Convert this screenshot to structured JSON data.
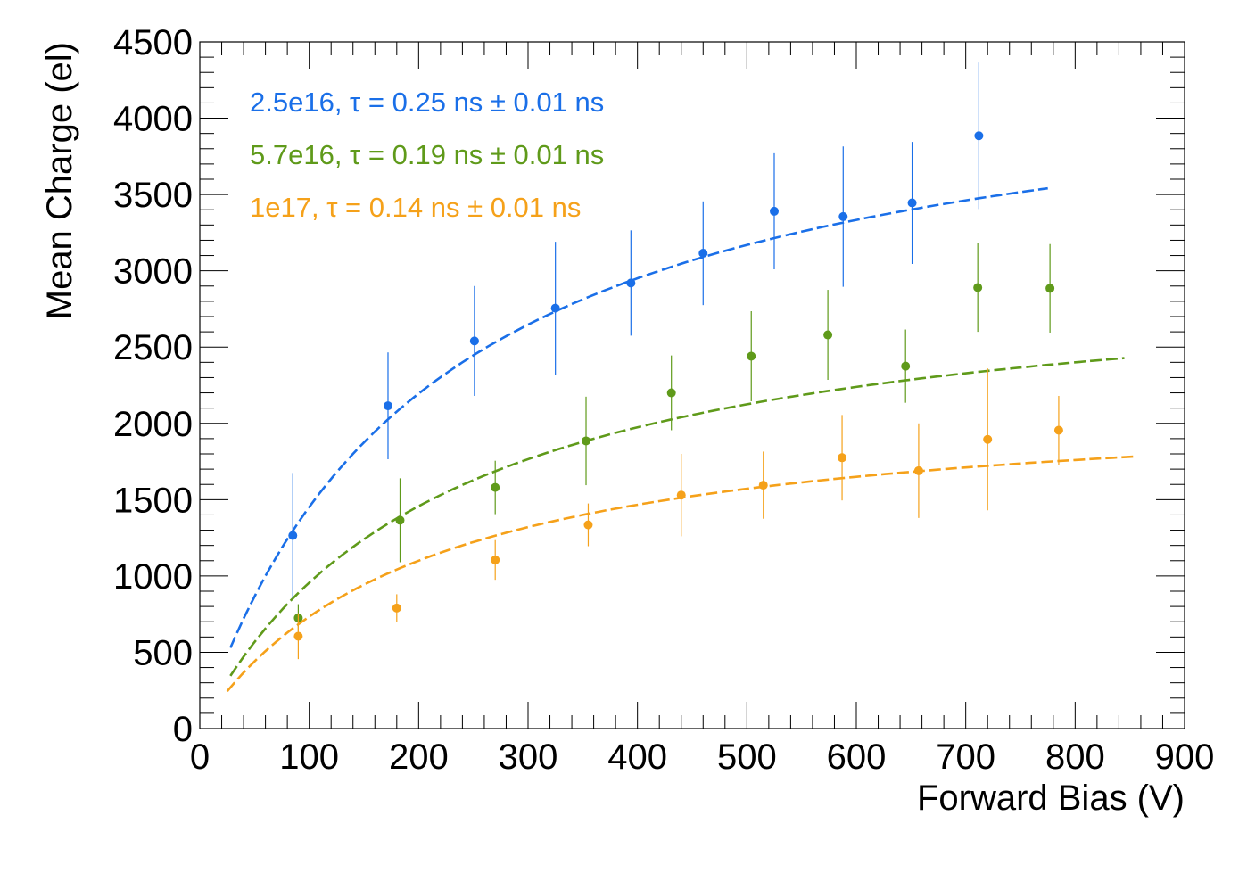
{
  "chart_data": {
    "type": "scatter",
    "title": "",
    "xlabel": "Forward Bias (V)",
    "ylabel": "Mean Charge (el)",
    "xlim": [
      0,
      900
    ],
    "ylim": [
      0,
      4500
    ],
    "x_ticks": [
      0,
      100,
      200,
      300,
      400,
      500,
      600,
      700,
      800,
      900
    ],
    "y_ticks": [
      0,
      500,
      1000,
      1500,
      2000,
      2500,
      3000,
      3500,
      4000,
      4500
    ],
    "grid": false,
    "legend_position": "top-left",
    "series": [
      {
        "name": "2.5e16",
        "label": "2.5e16, τ = 0.25 ns ± 0.01 ns",
        "color": "#1a6fe8",
        "points": [
          {
            "x": 85,
            "y": 1265,
            "err": 410
          },
          {
            "x": 172,
            "y": 2115,
            "err": 350
          },
          {
            "x": 251,
            "y": 2540,
            "err": 360
          },
          {
            "x": 325,
            "y": 2755,
            "err": 435
          },
          {
            "x": 394,
            "y": 2920,
            "err": 345
          },
          {
            "x": 460,
            "y": 3115,
            "err": 340
          },
          {
            "x": 525,
            "y": 3390,
            "err": 380
          },
          {
            "x": 588,
            "y": 3355,
            "err": 460
          },
          {
            "x": 651,
            "y": 3445,
            "err": 400
          },
          {
            "x": 712,
            "y": 3885,
            "err": 480
          }
        ],
        "fit_x_range": [
          28,
          775
        ],
        "fit_a": 4500,
        "fit_b": 210
      },
      {
        "name": "5.7e16",
        "label": "5.7e16, τ = 0.19 ns ± 0.01 ns",
        "color": "#5f9a1a",
        "points": [
          {
            "x": 90,
            "y": 725,
            "err": 90
          },
          {
            "x": 183,
            "y": 1365,
            "err": 275
          },
          {
            "x": 270,
            "y": 1580,
            "err": 175
          },
          {
            "x": 353,
            "y": 1885,
            "err": 290
          },
          {
            "x": 431,
            "y": 2200,
            "err": 245
          },
          {
            "x": 504,
            "y": 2440,
            "err": 295
          },
          {
            "x": 574,
            "y": 2580,
            "err": 295
          },
          {
            "x": 645,
            "y": 2375,
            "err": 240
          },
          {
            "x": 711,
            "y": 2890,
            "err": 290
          },
          {
            "x": 777,
            "y": 2885,
            "err": 290
          }
        ],
        "fit_x_range": [
          28,
          845
        ],
        "fit_a": 3060,
        "fit_b": 220
      },
      {
        "name": "1e17",
        "label": "1e17, τ = 0.14 ns ± 0.01 ns",
        "color": "#f5a11a",
        "points": [
          {
            "x": 90,
            "y": 605,
            "err": 150
          },
          {
            "x": 180,
            "y": 790,
            "err": 90
          },
          {
            "x": 270,
            "y": 1105,
            "err": 130
          },
          {
            "x": 355,
            "y": 1335,
            "err": 140
          },
          {
            "x": 440,
            "y": 1530,
            "err": 270
          },
          {
            "x": 515,
            "y": 1595,
            "err": 220
          },
          {
            "x": 587,
            "y": 1775,
            "err": 280
          },
          {
            "x": 657,
            "y": 1690,
            "err": 310
          },
          {
            "x": 720,
            "y": 1895,
            "err": 465
          },
          {
            "x": 785,
            "y": 1955,
            "err": 225
          }
        ],
        "fit_x_range": [
          25,
          855
        ],
        "fit_a": 2200,
        "fit_b": 200
      }
    ]
  }
}
